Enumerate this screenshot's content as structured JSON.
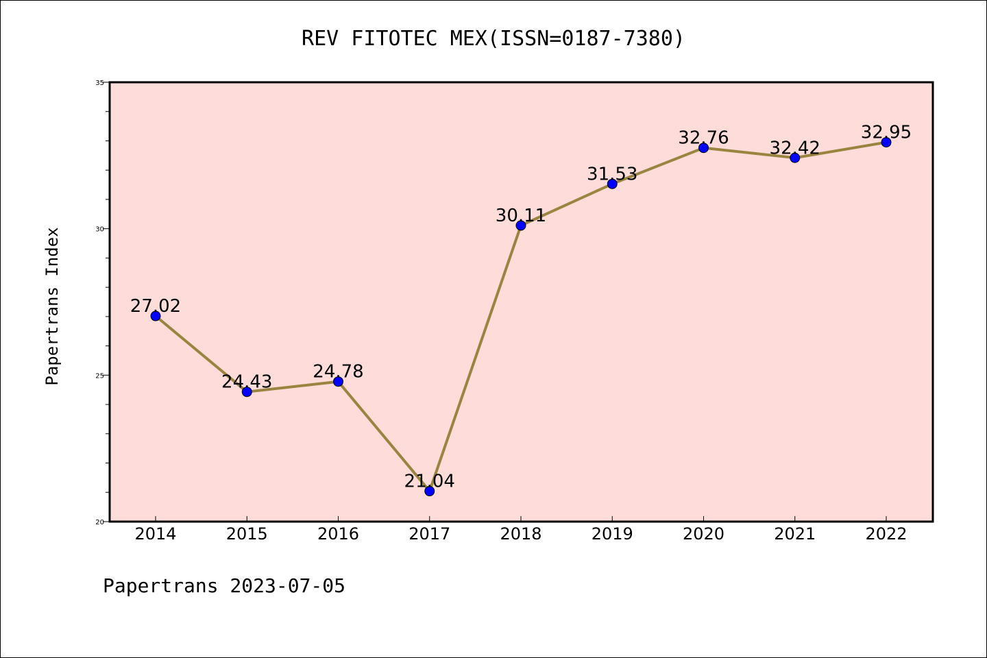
{
  "chart_data": {
    "type": "line",
    "title": "REV FITOTEC MEX(ISSN=0187-7380)",
    "xlabel": "",
    "ylabel": "Papertrans Index",
    "footer": "Papertrans 2023-07-05",
    "categories": [
      "2014",
      "2015",
      "2016",
      "2017",
      "2018",
      "2019",
      "2020",
      "2021",
      "2022"
    ],
    "series": [
      {
        "values": [
          27.02,
          24.43,
          24.78,
          21.04,
          30.11,
          31.53,
          32.76,
          32.42,
          32.95
        ]
      }
    ],
    "data_labels": [
      "27.02",
      "24.43",
      "24.78",
      "21.04",
      "30.11",
      "31.53",
      "32.76",
      "32.42",
      "32.95"
    ],
    "ylim": [
      20,
      35
    ],
    "yticks": [
      20,
      25,
      30,
      35
    ],
    "grid": false,
    "colors": {
      "plot_background": "#fddcda",
      "line": "#9a8540",
      "marker": "#0000ff",
      "axis": "#000000"
    }
  }
}
